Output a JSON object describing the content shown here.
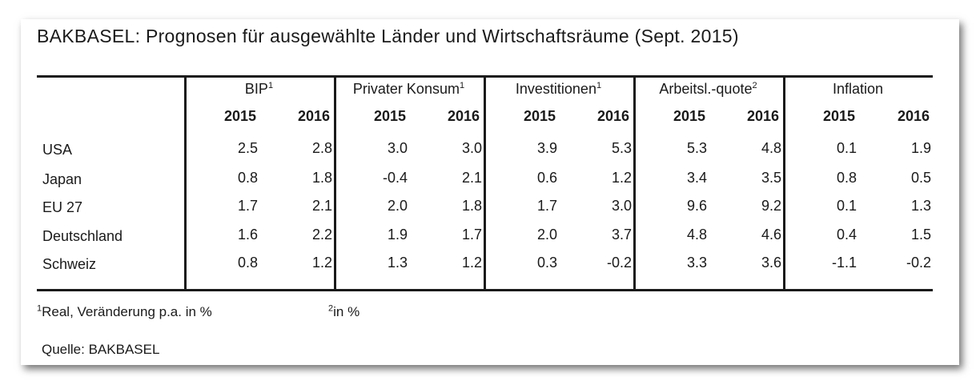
{
  "title": "BAKBASEL: Prognosen für ausgewählte Länder und Wirtschaftsräume (Sept. 2015)",
  "chart_data": {
    "type": "table",
    "title": "BAKBASEL: Prognosen für ausgewählte Länder und Wirtschaftsräume (Sept. 2015)",
    "groups": [
      {
        "label": "BIP",
        "sup": "1"
      },
      {
        "label": "Privater Konsum",
        "sup": "1"
      },
      {
        "label": "Investitionen",
        "sup": "1"
      },
      {
        "label": "Arbeitsl.-quote",
        "sup": "2"
      },
      {
        "label": "Inflation",
        "sup": ""
      }
    ],
    "years": [
      "2015",
      "2016"
    ],
    "rows": [
      {
        "label": "USA",
        "values": [
          "2.5",
          "2.8",
          "3.0",
          "3.0",
          "3.9",
          "5.3",
          "5.3",
          "4.8",
          "0.1",
          "1.9"
        ]
      },
      {
        "label": "Japan",
        "values": [
          "0.8",
          "1.8",
          "-0.4",
          "2.1",
          "0.6",
          "1.2",
          "3.4",
          "3.5",
          "0.8",
          "0.5"
        ]
      },
      {
        "label": "EU 27",
        "values": [
          "1.7",
          "2.1",
          "2.0",
          "1.8",
          "1.7",
          "3.0",
          "9.6",
          "9.2",
          "0.1",
          "1.3"
        ]
      },
      {
        "label": "Deutschland",
        "values": [
          "1.6",
          "2.2",
          "1.9",
          "1.7",
          "2.0",
          "3.7",
          "4.8",
          "4.6",
          "0.4",
          "1.5"
        ]
      },
      {
        "label": "Schweiz",
        "values": [
          "0.8",
          "1.2",
          "1.3",
          "1.2",
          "0.3",
          "-0.2",
          "3.3",
          "3.6",
          "-1.1",
          "-0.2"
        ]
      }
    ]
  },
  "footnotes": {
    "note1_sup": "1",
    "note1_text": "Real, Veränderung p.a. in %",
    "note2_sup": "2",
    "note2_text": "in %",
    "source": "Quelle: BAKBASEL"
  }
}
